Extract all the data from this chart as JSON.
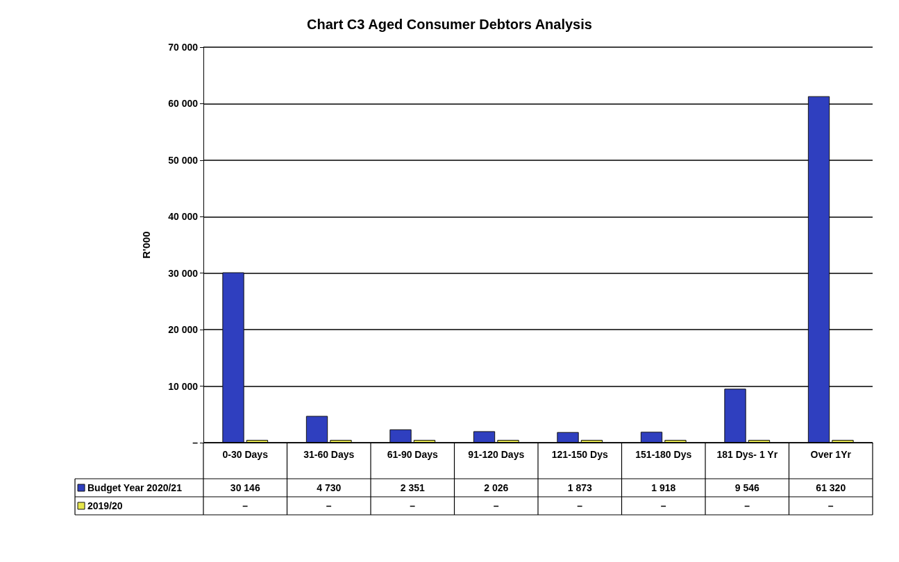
{
  "chart_data": {
    "type": "bar",
    "title": "Chart C3 Aged Consumer Debtors Analysis",
    "ylabel": "R'000",
    "categories": [
      "0-30 Days",
      "31-60 Days",
      "61-90 Days",
      "91-120 Days",
      "121-150 Dys",
      "151-180 Dys",
      "181 Dys- 1 Yr",
      "Over 1Yr"
    ],
    "series": [
      {
        "name": "Budget Year 2020/21",
        "color": "#2f3fbf",
        "values": [
          30146,
          4730,
          2351,
          2026,
          1873,
          1918,
          9546,
          61320
        ],
        "value_labels": [
          "30 146",
          "4 730",
          "2 351",
          "2 026",
          "1 873",
          "1 918",
          "9 546",
          "61 320"
        ]
      },
      {
        "name": "2019/20",
        "color": "#e6e64c",
        "values": [
          0,
          0,
          0,
          0,
          0,
          0,
          0,
          0
        ],
        "value_labels": [
          "–",
          "–",
          "–",
          "–",
          "–",
          "–",
          "–",
          "–"
        ]
      }
    ],
    "ylim": [
      0,
      70000
    ],
    "yticks": [
      {
        "value": 0,
        "label": "–"
      },
      {
        "value": 10000,
        "label": "10 000"
      },
      {
        "value": 20000,
        "label": "20 000"
      },
      {
        "value": 30000,
        "label": "30 000"
      },
      {
        "value": 40000,
        "label": "40 000"
      },
      {
        "value": 50000,
        "label": "50 000"
      },
      {
        "value": 60000,
        "label": "60 000"
      },
      {
        "value": 70000,
        "label": "70 000"
      }
    ],
    "grid": "y",
    "legend": "bottom left"
  }
}
